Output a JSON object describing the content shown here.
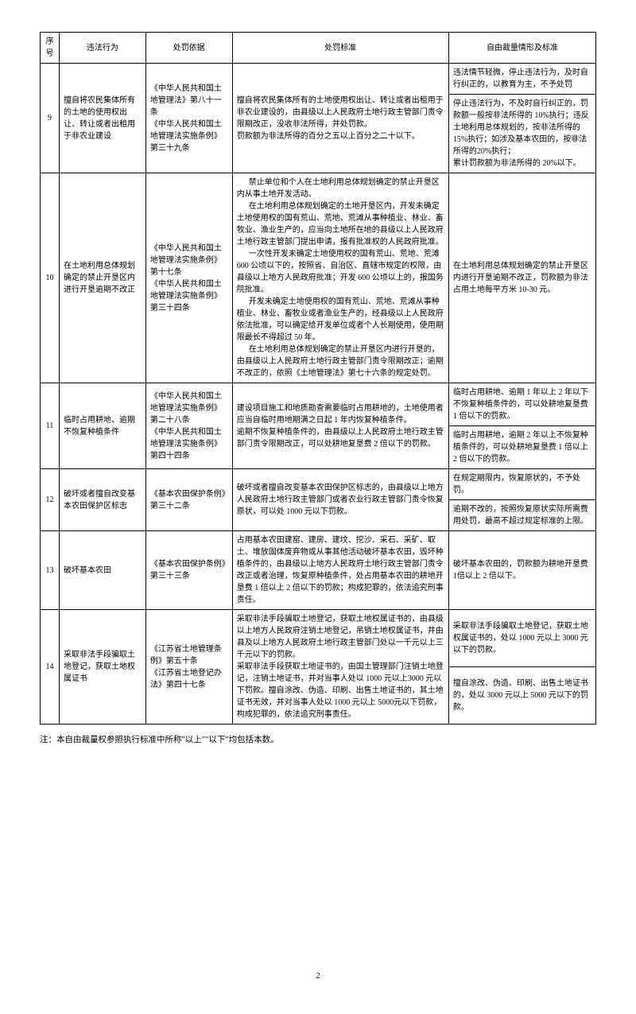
{
  "headers": {
    "seq": "序号",
    "act": "违法行为",
    "basis": "处罚依据",
    "standard": "处罚标准",
    "discretion": "自由裁量情形及标准"
  },
  "rows": [
    {
      "seq": "9",
      "act": "擅自将农民集体所有的土地的使用权出让、转让或者出租用于非农业建设",
      "basis": "《中华人民共和国土地管理法》第八十一条\n《中华人民共和国土地管理法实施条例》第三十九条",
      "standard": "擅自将农民集体所有的土地使用权出让、转让或者出租用于非农业建设的，由县级以上人民政府土地行政主管部门责令限期改正，没收非法所得，并处罚款。\n罚款额为非法所得的百分之五以上百分之二十以下。",
      "discretion1": "违法情节轻微，停止违法行为，及时自行纠正的，以教育为主，不予处罚",
      "discretion2": "停止违法行为，不及时自行纠正的，罚款额一般按非法所得的 10%执行；违反土地利用总体规划的，按非法所得的 15%执行；如涉及基本农田的，按非法所得的20%执行；\n累计罚款额为非法所得的 20%以下。"
    },
    {
      "seq": "10",
      "act": "在土地利用总体规划确定的禁止开垦区内进行开垦逾期不改正",
      "basis": "《中华人民共和国土地管理法实施条例》第十七条\n《中华人民共和国土地管理法实施条例》第三十四条",
      "standard_p1": "禁止单位和个人在土地利用总体规划确定的禁止开垦区内从事土地开发活动。",
      "standard_p2": "在土地利用总体规划确定的土地开垦区内，开发未确定土地使用权的国有荒山、荒地、荒滩从事种植业、林业、畜牧业、渔业生产的，应当向土地所在地的县级以上人民政府土地行政主管部门提出申请，报有批准权的人民政府批准。",
      "standard_p3": "一次性开发未确定土地使用权的国有荒山、荒地、荒滩 600 公顷以下的，按照省、自治区、直辖市规定的权限，由县级以上地方人民政府批准；开发 600 公顷以上的，报国务院批准。",
      "standard_p4": "开发未确定土地使用权的国有荒山、荒地、荒滩从事种植业、林业、畜牧业或者渔业生产的，经县级以上人民政府依法批准，可以确定给开发单位或者个人长期使用，使用期限最长不得超过 50 年。",
      "standard_p5": "在土地利用总体规划确定的禁止开垦区内进行开垦的，由县级以上人民政府土地行政主管部门责令限期改正；逾期不改正的，依照《土地管理法》第七十六条的规定处罚。",
      "discretion": "在土地利用总体规划确定的禁止开垦区内进行开垦逾期不改正，罚款额为非法占用土地每平方米 10-30 元。"
    },
    {
      "seq": "11",
      "act": "临时占用耕地、逾期不恢复种植条件",
      "basis": "《中华人民共和国土地管理法实施条例》第二十八条\n《中华人民共和国土地管理法实施条例》第四十四条",
      "standard": "建设项目施工和地质勘查需要临时占用耕地的，土地使用者应当自临时用地期满之日起 1 年内恢复种植条件。\n逾期不恢复种植条件的，由县级以上人民政府土地行政主管部门责令限期改正，可以处耕地复垦费 2 倍以下的罚款。",
      "discretion1": "临时占用耕地、逾期 1 年以上 2 年以下不恢复种植条件的，可以处耕地复垦费 1 倍以下的罚款。",
      "discretion2": "临时占用耕地，逾期 2 年以上不恢复种植条件的，可以处耕地复垦费 1 倍以上 2 倍以下的罚款。"
    },
    {
      "seq": "12",
      "act": "破坏或者擅自改变基本农田保护区标志",
      "basis": "《基本农田保护条例》第三十二条",
      "standard": "破坏或者擅自改变基本农田保护区标志的，由县级以上地方人民政府土地行政主管部门或者农业行政主管部门责令恢复原状，可以处 1000 元以下罚款。",
      "discretion1": "在规定期限内，恢复原状的，不予处罚。",
      "discretion2": "逾期不改的，按照恢复原状实际所需费用处罚，最高不超过规定标准的上限。"
    },
    {
      "seq": "13",
      "act": "破坏基本农田",
      "basis": "《基本农田保护条例》第三十三条",
      "standard": "占用基本农田建窑、建房、建坟、挖沙、采石、采矿、取土、堆放固体废弃物或从事其他活动破坏基本农田，毁坏种植条件的，由县级以上地方人民政府土地行政主管部门责令改正或者治理，恢复原种植条件，处占用基本农田的耕地开垦费 1 倍以上 2 倍以下的罚款；构成犯罪的，依法追究刑事责任。",
      "discretion": "破坏基本农田的，罚款额为耕地开垦费 1倍以上 2 倍以下。"
    },
    {
      "seq": "14",
      "act": "采取非法手段骗取土地登记，获取土地权属证书",
      "basis": "《江苏省土地管理条例》第五十条\n《江苏省土地登记办法》第四十七条",
      "standard": "采取非法手段骗取土地登记，获取土地权属证书的，由县级以上地方人民政府注销土地登记，吊销土地权属证书，并由县及以上地方人民政府土地行政主管部门处以一千元以上三千元以下的罚款。\n采取非法手段获取土地证书的，由国土管理部门注销土地登记，注销土地证书，并对当事人处以 1000 元以上3000 元以下罚款。擅自涂改、伪造、印刷、出售土地证书的，其土地证书无效，并对当事人处以 1000 元以上 5000元以下罚款，构成犯罪的，依法追究刑事责任。",
      "discretion1": "采取非法手段骗取土地登记，获取土地权属证书的，处以 1000 元以上 3000 元以下的罚款。",
      "discretion2": "擅自涂改、伪造、印刷、出售土地证书的，处以 3000 元以上 5000 元以下的罚款。"
    }
  ],
  "footnote": "注：本自由裁量权参照执行标准中所称\"以上\"\"以下\"均包括本数。",
  "pageNum": "2"
}
